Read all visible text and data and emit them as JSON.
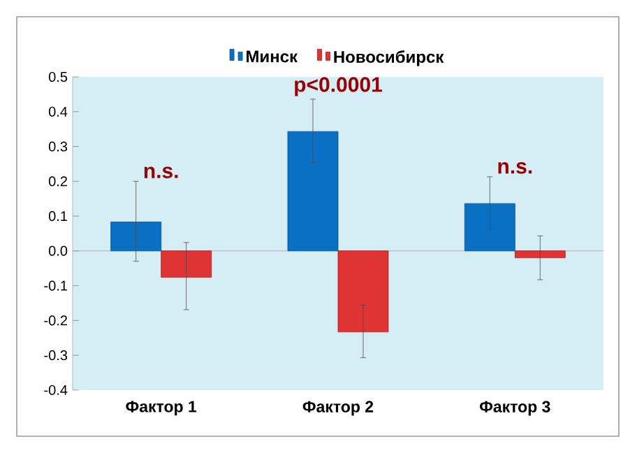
{
  "chart_data": {
    "type": "bar",
    "categories": [
      "Фактор 1",
      "Фактор 2",
      "Фактор 3"
    ],
    "series": [
      {
        "name": "Минск",
        "color": "#0a70c4",
        "values": [
          0.083,
          0.343,
          0.136
        ],
        "errors": [
          [
            -0.03,
            0.2
          ],
          [
            0.253,
            0.436
          ],
          [
            0.063,
            0.213
          ]
        ]
      },
      {
        "name": "Новосибирск",
        "color": "#e03333",
        "values": [
          -0.076,
          -0.233,
          -0.02
        ],
        "errors": [
          [
            -0.169,
            0.024
          ],
          [
            -0.307,
            -0.156
          ],
          [
            -0.083,
            0.043
          ]
        ]
      }
    ],
    "ylim": [
      -0.4,
      0.5
    ],
    "yticks": [
      {
        "value": -0.4,
        "label": "-0.4"
      },
      {
        "value": -0.3,
        "label": "-0.3"
      },
      {
        "value": -0.2,
        "label": "-0.2"
      },
      {
        "value": -0.1,
        "label": "-0.1"
      },
      {
        "value": 0,
        "label": "0.0"
      },
      {
        "value": 0.1,
        "label": "0.1"
      },
      {
        "value": 0.2,
        "label": "0.2"
      },
      {
        "value": 0.3,
        "label": "0.3"
      },
      {
        "value": 0.4,
        "label": "0.4"
      },
      {
        "value": 0.5,
        "label": "0.5"
      }
    ],
    "annotations": [
      "n.s.",
      "p<0.0001",
      "n.s."
    ],
    "legend": "top"
  }
}
